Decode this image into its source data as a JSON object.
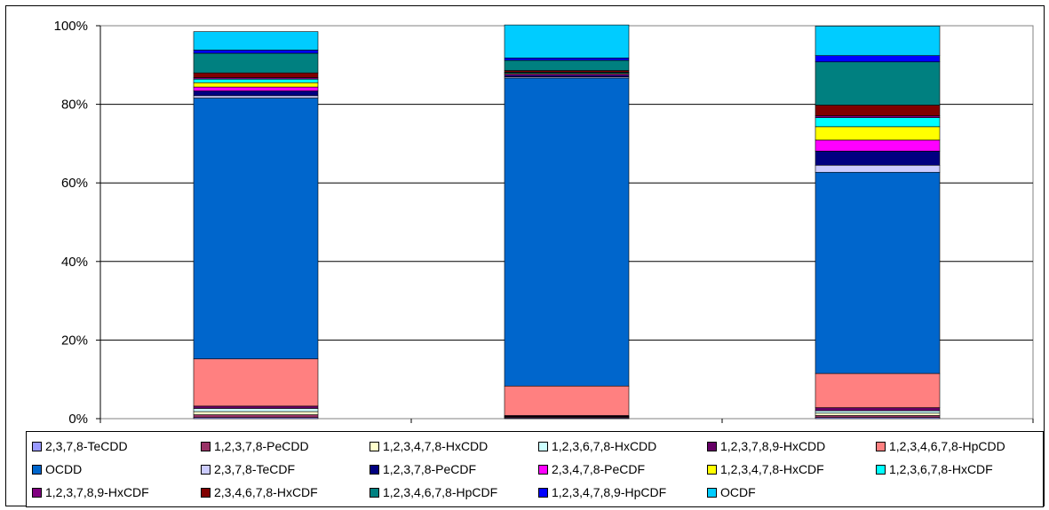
{
  "chart_data": {
    "type": "bar",
    "stacked": true,
    "percent": true,
    "categories": [
      "",
      "",
      ""
    ],
    "ylim": [
      0,
      100
    ],
    "yticks": [
      "0%",
      "20%",
      "40%",
      "60%",
      "80%",
      "100%"
    ],
    "grid": true,
    "legend_position": "bottom",
    "series": [
      {
        "name": "2,3,7,8-TeCDD",
        "color": "#9999ff",
        "values": [
          0.3,
          0.2,
          0.3
        ]
      },
      {
        "name": "1,2,3,7,8-PeCDD",
        "color": "#993366",
        "values": [
          0.7,
          0.2,
          0.5
        ]
      },
      {
        "name": "1,2,3,4,7,8-HxCDD",
        "color": "#ffffcc",
        "values": [
          0.8,
          0.1,
          0.6
        ]
      },
      {
        "name": "1,2,3,6,7,8-HxCDD",
        "color": "#ccffff",
        "values": [
          0.8,
          0.1,
          0.6
        ]
      },
      {
        "name": "1,2,3,7,8,9-HxCDD",
        "color": "#660066",
        "values": [
          0.6,
          0.2,
          0.8
        ]
      },
      {
        "name": "1,2,3,4,6,7,8-HpCDD",
        "color": "#ff8080",
        "values": [
          12.0,
          7.5,
          8.7
        ]
      },
      {
        "name": "OCDD",
        "color": "#0066cc",
        "values": [
          66.4,
          78.4,
          51.2
        ]
      },
      {
        "name": "2,3,7,8-TeCDF",
        "color": "#ccccff",
        "values": [
          0.6,
          0.3,
          1.8
        ]
      },
      {
        "name": "1,2,3,7,8-PeCDF",
        "color": "#000080",
        "values": [
          1.2,
          0.4,
          3.6
        ]
      },
      {
        "name": "2,3,4,7,8-PeCDF",
        "color": "#ff00ff",
        "values": [
          1.0,
          0.3,
          2.8
        ]
      },
      {
        "name": "1,2,3,4,7,8-HxCDF",
        "color": "#ffff00",
        "values": [
          1.1,
          0.2,
          3.4
        ]
      },
      {
        "name": "1,2,3,6,7,8-HxCDF",
        "color": "#00ffff",
        "values": [
          0.9,
          0.2,
          2.3
        ]
      },
      {
        "name": "1,2,3,7,8,9-HxCDF",
        "color": "#800080",
        "values": [
          0.4,
          0.1,
          0.5
        ]
      },
      {
        "name": "2,3,4,6,7,8-HxCDF",
        "color": "#800000",
        "values": [
          1.2,
          0.4,
          2.7
        ]
      },
      {
        "name": "1,2,3,4,6,7,8-HpCDF",
        "color": "#008080",
        "values": [
          5.0,
          2.6,
          11.0
        ]
      },
      {
        "name": "1,2,3,4,7,8,9-HpCDF",
        "color": "#0000ff",
        "values": [
          0.8,
          0.6,
          1.6
        ]
      },
      {
        "name": "OCDF",
        "color": "#00ccff",
        "values": [
          4.7,
          8.4,
          7.5
        ]
      }
    ]
  }
}
